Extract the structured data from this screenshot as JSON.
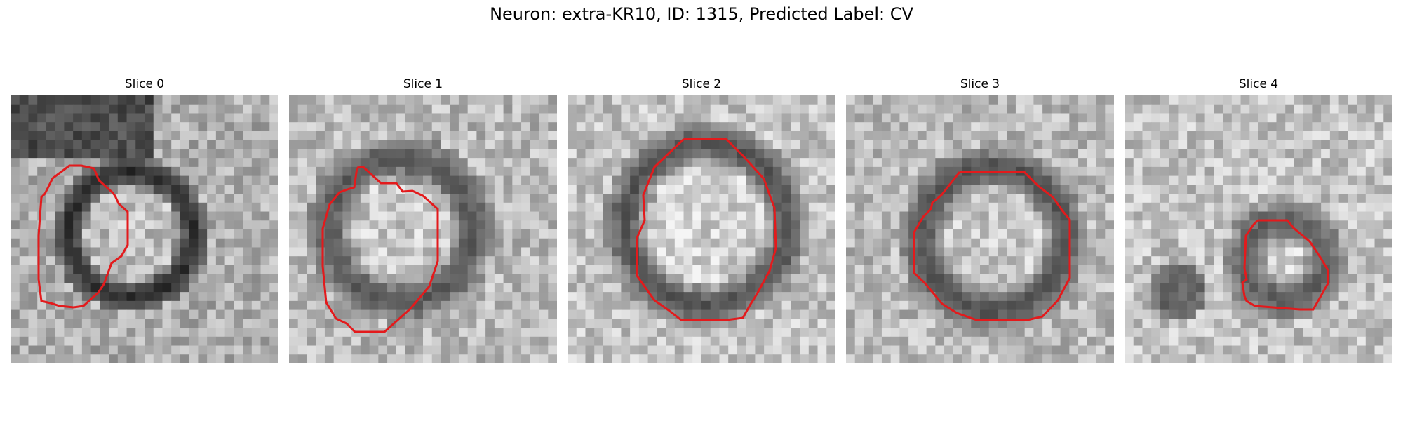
{
  "figure": {
    "title": "Neuron: extra-KR10, ID: 1315, Predicted Label: CV"
  },
  "panels": [
    {
      "label": "Slice 0"
    },
    {
      "label": "Slice 1"
    },
    {
      "label": "Slice 2"
    },
    {
      "label": "Slice 3"
    },
    {
      "label": "Slice 4"
    }
  ],
  "colors": {
    "contour": "#e31a1c",
    "background": "#ffffff"
  }
}
